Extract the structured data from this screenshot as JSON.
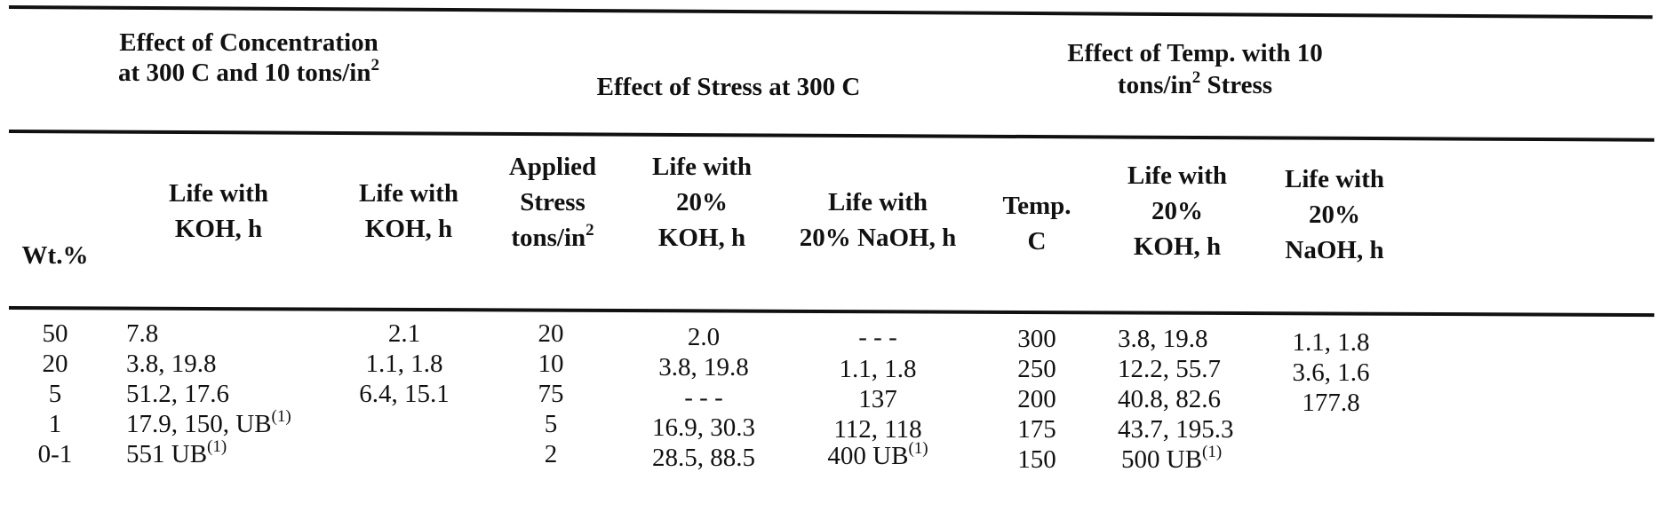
{
  "groups": {
    "concentration": {
      "line1": "Effect of Concentration",
      "line2": "at 300 C and 10 tons/in",
      "sup": "2"
    },
    "stress": {
      "line1": "Effect of Stress at 300 C"
    },
    "temp": {
      "line1": "Effect of Temp. with 10",
      "line2a": "tons/in",
      "sup": "2",
      "line2b": " Stress"
    }
  },
  "headers": {
    "wt": "Wt.%",
    "koh_a1": "Life with",
    "koh_a2": "KOH, h",
    "koh_b1": "Life with",
    "koh_b2": "KOH, h",
    "stress1": "Applied",
    "stress2": "Stress",
    "stress3": "tons/in",
    "stress3_sup": "2",
    "koh20_1": "Life with",
    "koh20_2": "20%",
    "koh20_3": "KOH, h",
    "naoh20_1": "Life with",
    "naoh20_2": "20% NaOH, h",
    "temp1": "Temp.",
    "temp2": "C",
    "tkoh_1": "Life with",
    "tkoh_2": "20%",
    "tkoh_3": "KOH, h",
    "tnaoh_1": "Life with",
    "tnaoh_2": "20%",
    "tnaoh_3": "NaOH, h"
  },
  "rows": {
    "wt": [
      "50",
      "20",
      "5",
      "1",
      "0-1"
    ],
    "koh_a": [
      "7.8",
      "3.8, 19.8",
      "51.2, 17.6",
      "17.9, 150, UB",
      "551 UB"
    ],
    "koh_a_sup": [
      "",
      "",
      "",
      "(1)",
      "(1)"
    ],
    "koh_b": [
      "2.1",
      "1.1, 1.8",
      "6.4, 15.1",
      "",
      ""
    ],
    "stress": [
      "20",
      "10",
      "75",
      "5",
      "2"
    ],
    "koh20": [
      "2.0",
      "3.8, 19.8",
      "- - -",
      "16.9, 30.3",
      "28.5, 88.5"
    ],
    "naoh20": [
      "- - -",
      "1.1, 1.8",
      "137",
      "112, 118",
      "400 UB"
    ],
    "naoh20_sup": [
      "",
      "",
      "",
      "",
      "(1)"
    ],
    "temp": [
      "300",
      "250",
      "200",
      "175",
      "150"
    ],
    "tkoh": [
      "3.8, 19.8",
      "12.2, 55.7",
      "40.8, 82.6",
      "43.7, 195.3",
      "500 UB"
    ],
    "tkoh_sup": [
      "",
      "",
      "",
      "",
      "(1)"
    ],
    "tnaoh": [
      "1.1, 1.8",
      "3.6, 1.6",
      "177.8",
      "",
      ""
    ]
  }
}
